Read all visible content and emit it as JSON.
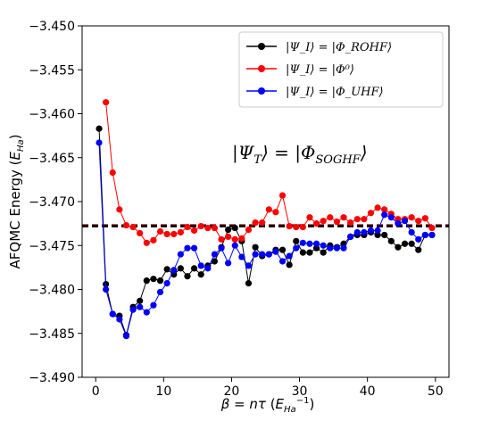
{
  "chart_data": {
    "type": "line",
    "xlabel": "β = nτ (E_Ha^-1)",
    "ylabel": "AFQMC Energy (E_Ha)",
    "xlim": [
      -2,
      52
    ],
    "ylim": [
      -3.49,
      -3.45
    ],
    "xticks": [
      "0",
      "10",
      "20",
      "30",
      "40",
      "50"
    ],
    "xtick_values": [
      0,
      10,
      20,
      30,
      40,
      50
    ],
    "yticks": [
      "−3.450",
      "−3.455",
      "−3.460",
      "−3.465",
      "−3.470",
      "−3.475",
      "−3.480",
      "−3.485",
      "−3.490"
    ],
    "ytick_values": [
      -3.45,
      -3.455,
      -3.46,
      -3.465,
      -3.47,
      -3.475,
      -3.48,
      -3.485,
      -3.49
    ],
    "legend_position": "top-right",
    "annotation": "|Ψ_T⟩ = |Φ_SOGHF⟩",
    "reference_lines": [
      {
        "y": -3.4727,
        "color": "#8b0000",
        "style": "dashed"
      },
      {
        "y": -3.4728,
        "color": "#000000",
        "style": "dashed"
      }
    ],
    "series": [
      {
        "name": "|Ψ_I⟩ = |Φ_ROHF⟩",
        "color": "#000000",
        "x": [
          0.5,
          1.5,
          2.5,
          3.5,
          4.5,
          5.5,
          6.5,
          7.5,
          8.5,
          9.5,
          10.5,
          11.5,
          12.5,
          13.5,
          14.5,
          15.5,
          16.5,
          17.5,
          18.5,
          19.5,
          20.5,
          21.5,
          22.5,
          23.5,
          24.5,
          25.5,
          26.5,
          27.5,
          28.5,
          29.5,
          30.5,
          31.5,
          32.5,
          33.5,
          34.5,
          35.5,
          36.5,
          37.5,
          38.5,
          39.5,
          40.5,
          41.5,
          42.5,
          43.5,
          44.5,
          45.5,
          46.5,
          47.5,
          48.5,
          49.5
        ],
        "y": [
          -3.4617,
          -3.4794,
          -3.4828,
          -3.483,
          -3.4852,
          -3.482,
          -3.4813,
          -3.479,
          -3.4788,
          -3.479,
          -3.4777,
          -3.4783,
          -3.4776,
          -3.4785,
          -3.4776,
          -3.4783,
          -3.4773,
          -3.4768,
          -3.4752,
          -3.4732,
          -3.473,
          -3.4745,
          -3.4793,
          -3.4752,
          -3.4762,
          -3.476,
          -3.4755,
          -3.4755,
          -3.4772,
          -3.4745,
          -3.4758,
          -3.4758,
          -3.4753,
          -3.4758,
          -3.475,
          -3.4752,
          -3.4748,
          -3.474,
          -3.4738,
          -3.4738,
          -3.4735,
          -3.4738,
          -3.4738,
          -3.4745,
          -3.4752,
          -3.4748,
          -3.4748,
          -3.4755,
          -3.4738,
          -3.4738
        ]
      },
      {
        "name": "|Ψ_I⟩ = |Φ⁰⟩",
        "color": "#ff0000",
        "x": [
          1.5,
          2.5,
          3.5,
          4.5,
          5.5,
          6.5,
          7.5,
          8.5,
          9.5,
          10.5,
          11.5,
          12.5,
          13.5,
          14.5,
          15.5,
          16.5,
          17.5,
          18.5,
          19.5,
          20.5,
          21.5,
          22.5,
          23.5,
          24.5,
          25.5,
          26.5,
          27.5,
          28.5,
          29.5,
          30.5,
          31.5,
          32.5,
          33.5,
          34.5,
          35.5,
          36.5,
          37.5,
          38.5,
          39.5,
          40.5,
          41.5,
          42.5,
          43.5,
          44.5,
          45.5,
          46.5,
          47.5,
          48.5,
          49.5
        ],
        "y": [
          -3.4587,
          -3.4667,
          -3.4709,
          -3.4727,
          -3.4729,
          -3.4736,
          -3.4747,
          -3.4744,
          -3.4734,
          -3.4737,
          -3.4737,
          -3.4735,
          -3.4729,
          -3.4733,
          -3.4728,
          -3.473,
          -3.473,
          -3.4743,
          -3.474,
          -3.4743,
          -3.4742,
          -3.4732,
          -3.4724,
          -3.4724,
          -3.4709,
          -3.4712,
          -3.4693,
          -3.4728,
          -3.4729,
          -3.4729,
          -3.4718,
          -3.4725,
          -3.4722,
          -3.4718,
          -3.4723,
          -3.4718,
          -3.4724,
          -3.472,
          -3.472,
          -3.4713,
          -3.4707,
          -3.4709,
          -3.4714,
          -3.472,
          -3.472,
          -3.4718,
          -3.4722,
          -3.4719,
          -3.473
        ]
      },
      {
        "name": "|Ψ_I⟩ = |Φ_UHF⟩",
        "color": "#0000ff",
        "x": [
          0.5,
          1.5,
          2.5,
          3.5,
          4.5,
          5.5,
          6.5,
          7.5,
          8.5,
          9.5,
          10.5,
          11.5,
          12.5,
          13.5,
          14.5,
          15.5,
          16.5,
          17.5,
          18.5,
          19.5,
          20.5,
          21.5,
          22.5,
          23.5,
          24.5,
          25.5,
          26.5,
          27.5,
          28.5,
          29.5,
          30.5,
          31.5,
          32.5,
          33.5,
          34.5,
          35.5,
          36.5,
          37.5,
          38.5,
          39.5,
          40.5,
          41.5,
          42.5,
          43.5,
          44.5,
          45.5,
          46.5,
          47.5,
          48.5,
          49.5
        ],
        "y": [
          -3.4633,
          -3.48,
          -3.4828,
          -3.4834,
          -3.4853,
          -3.4823,
          -3.482,
          -3.4826,
          -3.4818,
          -3.4803,
          -3.4793,
          -3.4778,
          -3.476,
          -3.4753,
          -3.4753,
          -3.4773,
          -3.4776,
          -3.476,
          -3.4753,
          -3.477,
          -3.475,
          -3.4763,
          -3.4773,
          -3.476,
          -3.476,
          -3.476,
          -3.4757,
          -3.4768,
          -3.4762,
          -3.4753,
          -3.4747,
          -3.4748,
          -3.4748,
          -3.475,
          -3.4753,
          -3.4753,
          -3.4753,
          -3.474,
          -3.4735,
          -3.4735,
          -3.4733,
          -3.4733,
          -3.4715,
          -3.4718,
          -3.4725,
          -3.4722,
          -3.4735,
          -3.4743,
          -3.4738,
          -3.4738
        ]
      }
    ]
  }
}
